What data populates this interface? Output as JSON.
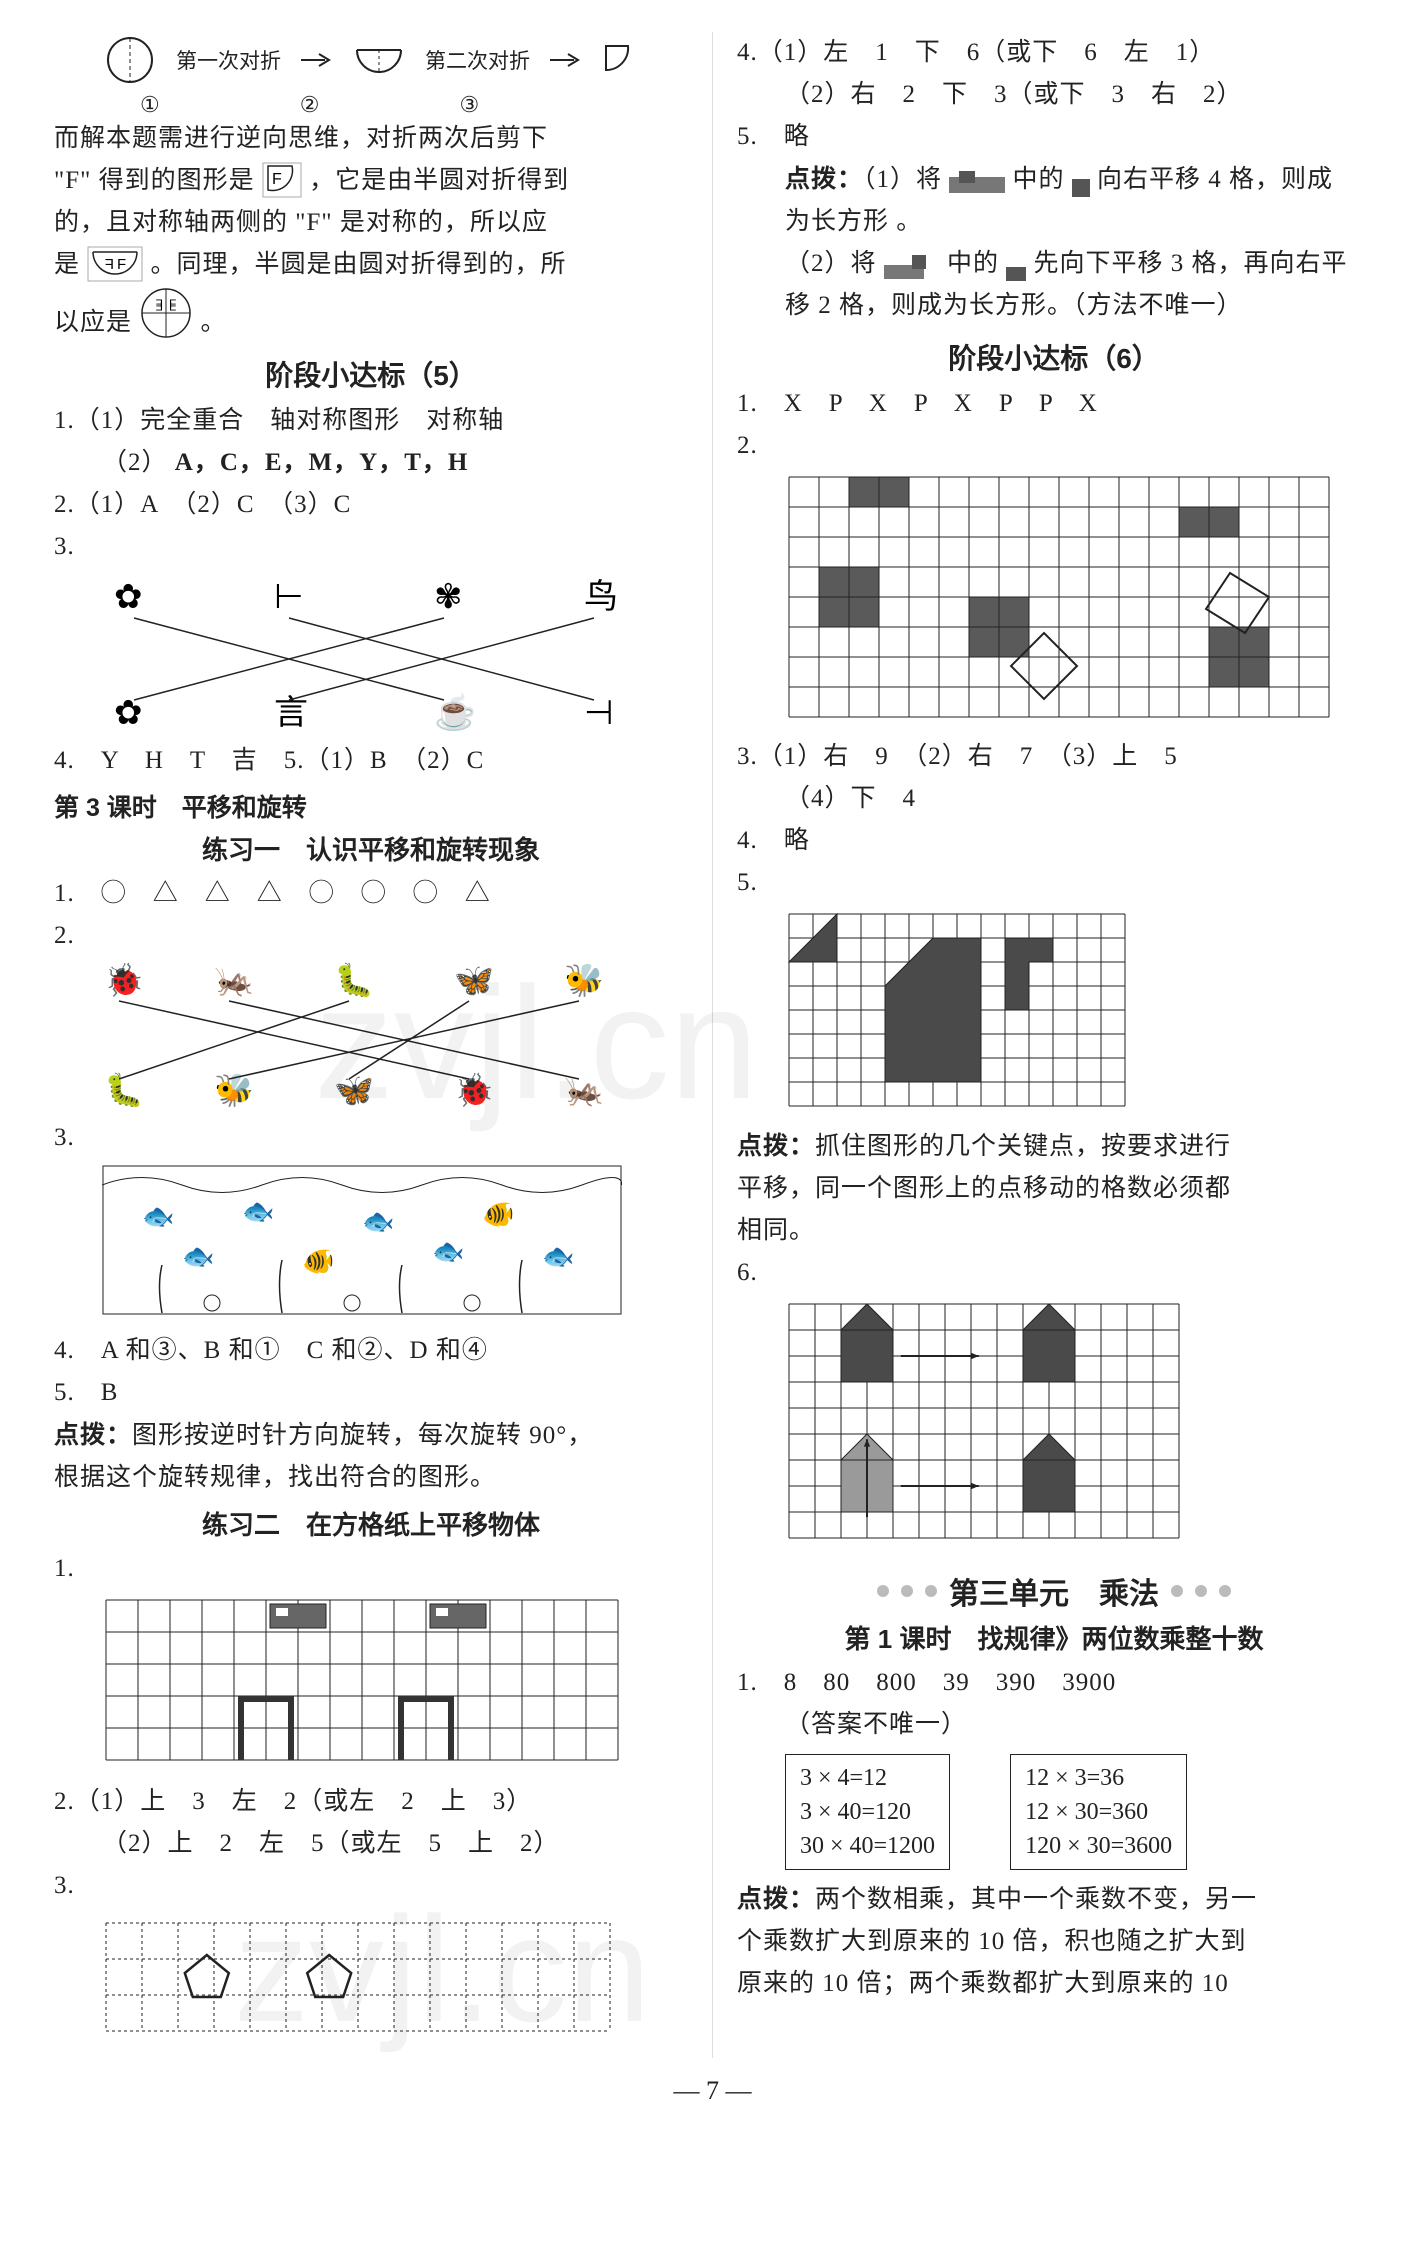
{
  "left": {
    "fold": {
      "label1": "第一次对折",
      "label2": "第二次对折",
      "n1": "①",
      "n2": "②",
      "n3": "③"
    },
    "p1": "而解本题需进行逆向思维，对折两次后剪下",
    "p2a": "\"F\" 得到的图形是",
    "p2b": "，它是由半圆对折得到",
    "p3": "的，且对称轴两侧的 \"F\" 是对称的，所以应",
    "p4a": "是",
    "p4b": "。同理，半圆是由圆对折得到的，所",
    "p5a": "以应是",
    "p5b": "。",
    "stage5_title": "阶段小达标（5）",
    "q1_1": "1.（1）完全重合　轴对称图形　对称轴",
    "q1_2": "（2）",
    "q1_2_letters": "A，C，E，M，Y，T，H",
    "q2": "2.（1）A　（2）C　（3）C",
    "q3": "3.",
    "q4": "4.　Y　H　T　吉　5.（1）B　（2）C",
    "lesson3_title": "第 3 课时　平移和旋转",
    "ex1_title": "练习一　认识平移和旋转现象",
    "q_ex1_1": "1.　◯　△　△　△　◯　◯　◯　△",
    "q_ex1_2": "2.",
    "q_ex1_3": "3.",
    "q_ex1_4": "4.　A 和③、B 和①　C 和②、D 和④",
    "q_ex1_5": "5.　B",
    "dianbo1a": "点拨：",
    "dianbo1b": "图形按逆时针方向旋转，每次旋转 90°，",
    "dianbo1c": "根据这个旋转规律，找出符合的图形。",
    "ex2_title": "练习二　在方格纸上平移物体",
    "q_ex2_1": "1.",
    "q_ex2_2_1": "2.（1）上　3　左　2（或左　2　上　3）",
    "q_ex2_2_2": "（2）上　2　左　5（或左　5　上　2）",
    "q_ex2_3": "3."
  },
  "right": {
    "q4_1": "4.（1）左　1　下　6（或下　6　左　1）",
    "q4_2": "（2）右　2　下　3（或下　3　右　2）",
    "q5": "5.　略",
    "db_label": "点拨：",
    "db1a": "（1）将",
    "db1b": "中的",
    "db1c": "向右平移 4 格，则成",
    "db1d": "为长方形 。",
    "db2a": "（2）将",
    "db2b": "中的",
    "db2c": "先向下平移 3 格，再向右平",
    "db2d": "移 2 格，则成为长方形。（方法不唯一）",
    "stage6_title": "阶段小达标（6）",
    "q1": "1.　X　P　X　P　X　P　P　X",
    "q2": "2.",
    "q3_1": "3.（1）右　9　（2）右　7　（3）上　5",
    "q3_2": "（4）下　4",
    "q4": "4.　略",
    "q5b": "5.",
    "db3_label": "点拨：",
    "db3a": "抓住图形的几个关键点，按要求进行",
    "db3b": "平移，同一个图形上的点移动的格数必须都",
    "db3c": "相同。",
    "q6": "6.",
    "unit3_title": "第三单元　乘法",
    "lesson1_title": "第 1 课时　找规律》两位数乘整十数",
    "u3_q1a": "1.　8　80　800　39　390　3900",
    "u3_q1b": "（答案不唯一）",
    "box1": [
      "3 × 4=12",
      "3 × 40=120",
      "30 × 40=1200"
    ],
    "box2": [
      "12 × 3=36",
      "12 × 30=360",
      "120 × 30=3600"
    ],
    "db4_label": "点拨：",
    "db4a": "两个数相乘，其中一个乘数不变，另一",
    "db4b": "个乘数扩大到原来的 10 倍，积也随之扩大到",
    "db4c": "原来的 10 倍；两个乘数都扩大到原来的 10"
  },
  "pageno": "— 7 —",
  "colors": {
    "text": "#222222",
    "grid": "#222222",
    "fill_dark": "#4a4a4a",
    "fill_gray": "#9a9a9a",
    "dot": "#bbbbbb"
  }
}
